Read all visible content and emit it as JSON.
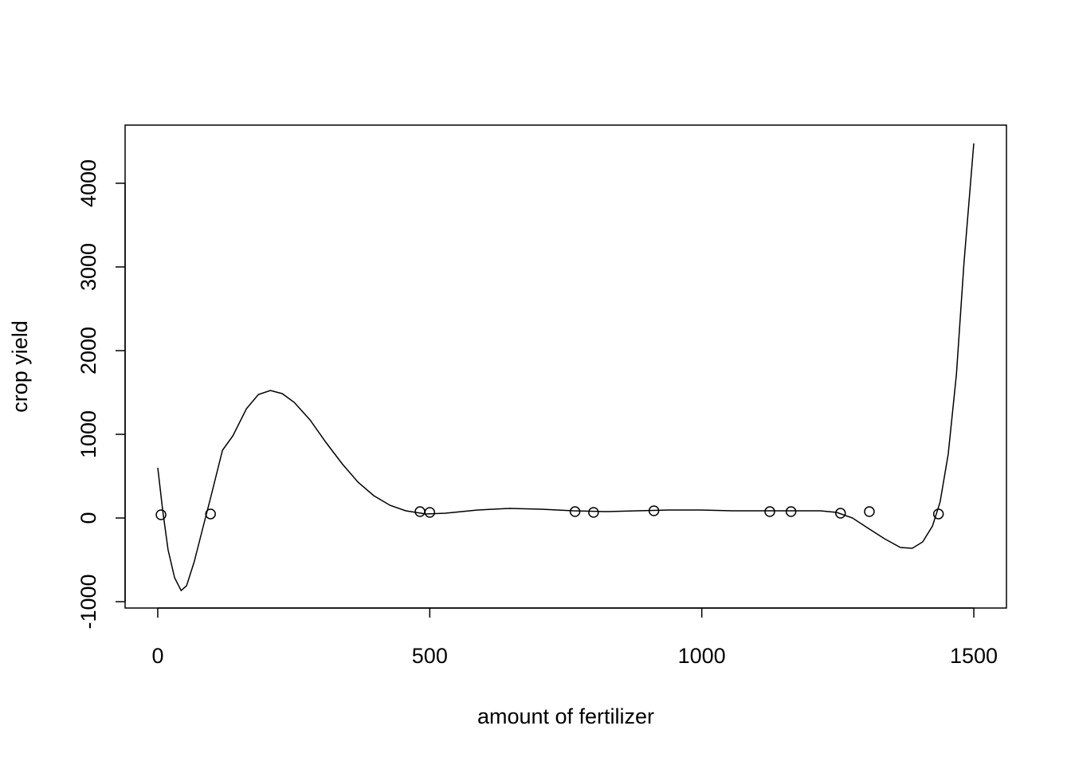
{
  "chart_data": {
    "type": "scatter",
    "x_label": "amount of fertilizer",
    "y_label": "crop yield",
    "x": [
      6,
      97,
      482,
      500,
      767,
      801,
      912,
      1125,
      1164,
      1255,
      1308,
      1435
    ],
    "values": [
      38,
      48,
      76,
      67,
      76,
      67,
      86,
      76,
      76,
      57,
      76,
      48
    ],
    "curve": {
      "x": [
        0,
        9,
        19,
        31,
        43,
        53,
        67,
        82,
        97,
        119,
        138,
        163,
        185,
        207,
        229,
        251,
        280,
        309,
        339,
        368,
        397,
        427,
        456,
        493,
        529,
        588,
        647,
        705,
        764,
        823,
        881,
        940,
        999,
        1057,
        1116,
        1174,
        1218,
        1248,
        1277,
        1306,
        1336,
        1365,
        1387,
        1406,
        1424,
        1438,
        1453,
        1468,
        1482,
        1500
      ],
      "values": [
        600,
        95,
        -380,
        -714,
        -867,
        -810,
        -524,
        -143,
        238,
        810,
        981,
        1305,
        1476,
        1524,
        1486,
        1381,
        1171,
        905,
        648,
        429,
        267,
        152,
        86,
        48,
        57,
        95,
        114,
        105,
        86,
        76,
        86,
        95,
        95,
        86,
        86,
        86,
        86,
        67,
        0,
        -124,
        -248,
        -352,
        -362,
        -286,
        -95,
        190,
        762,
        1714,
        3048,
        4476
      ]
    },
    "color": "#000000",
    "xlim": [
      -60,
      1560
    ],
    "ylim": [
      -1076,
      4695
    ],
    "xticks": [
      0,
      500,
      1000,
      1500
    ],
    "yticks": [
      -1000,
      0,
      1000,
      2000,
      3000,
      4000
    ]
  }
}
